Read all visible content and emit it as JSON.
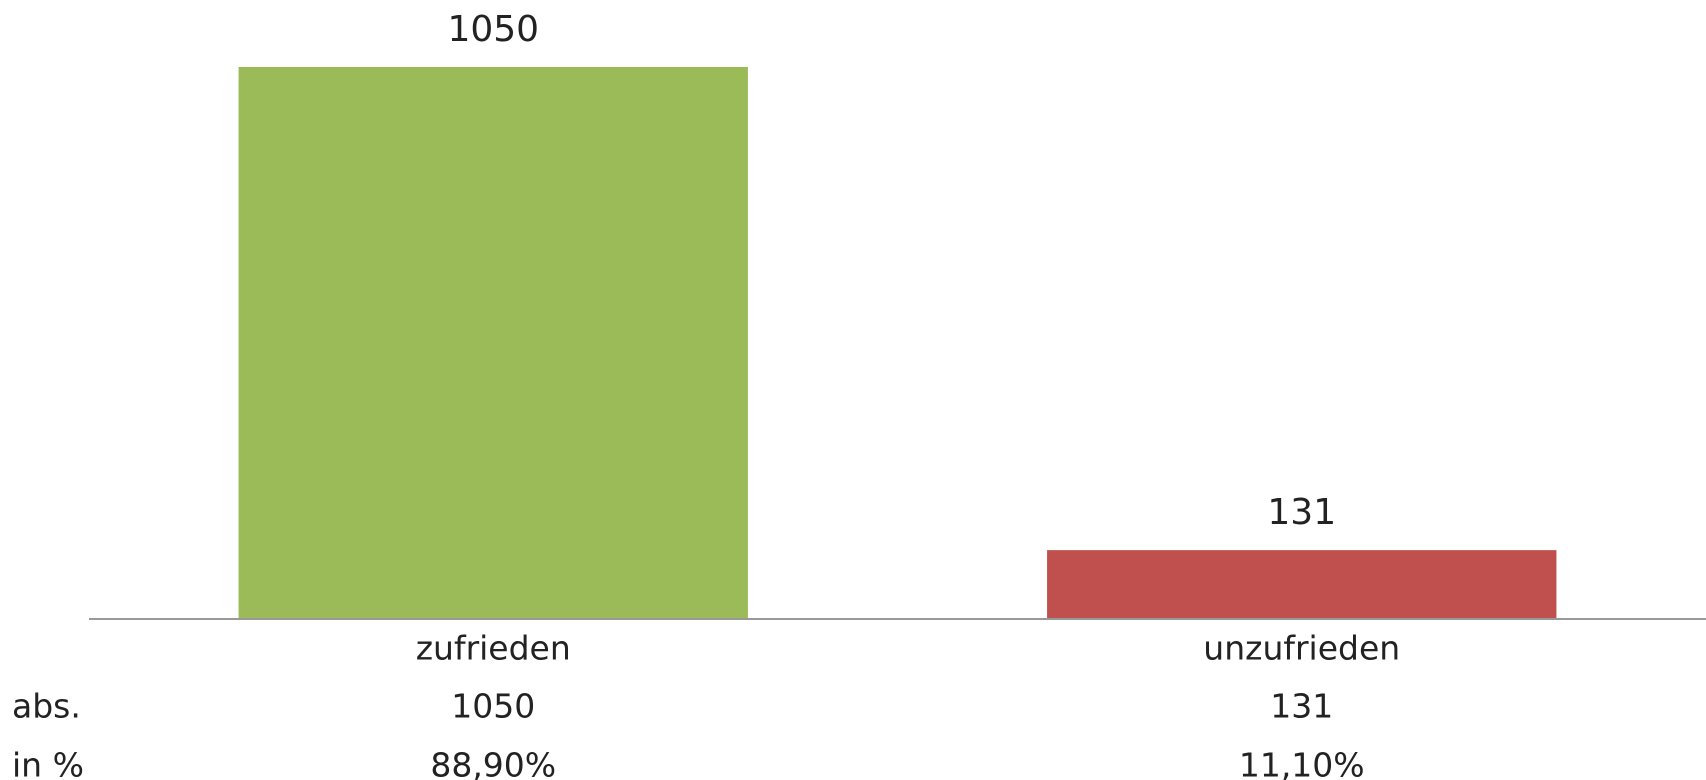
{
  "chart_data": {
    "type": "bar",
    "categories": [
      "zufrieden",
      "unzufrieden"
    ],
    "values": [
      1050,
      131
    ],
    "colors": [
      "#9bbb59",
      "#c0504d"
    ],
    "ylim": [
      0,
      1050
    ],
    "data_table": [
      {
        "label": "abs."
      },
      {
        "label": "in %",
        "values": [
          88.9,
          11.1
        ],
        "value_labels": [
          "88,90%",
          "11,10%"
        ]
      }
    ]
  }
}
